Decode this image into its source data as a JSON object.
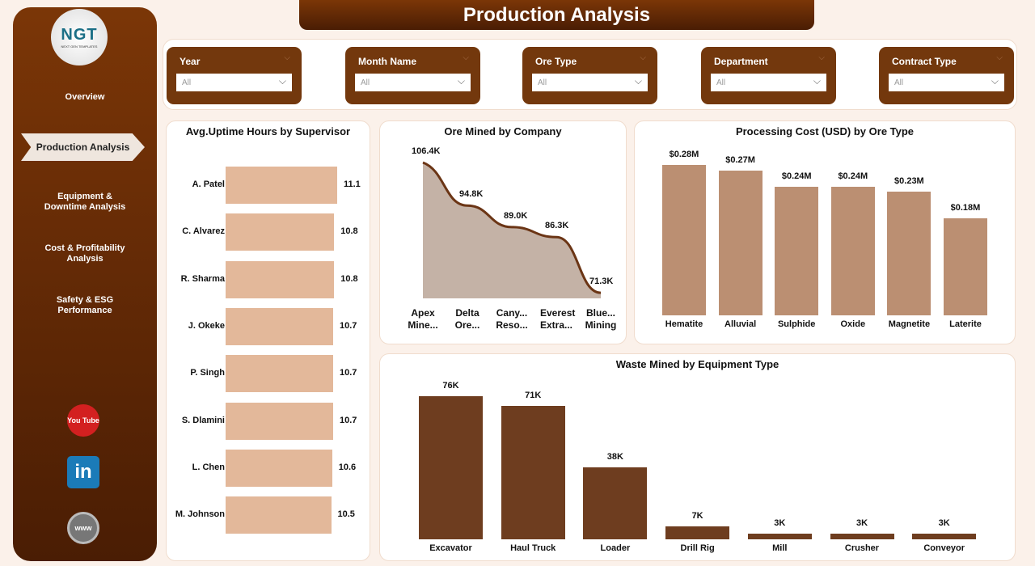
{
  "title": "Production Analysis",
  "logo": {
    "text": "NGT",
    "sub": "NEXT GEN TEMPLATES"
  },
  "nav": [
    {
      "label": "Overview"
    },
    {
      "label": "Production Analysis",
      "active": true
    },
    {
      "label": "Equipment & Downtime Analysis"
    },
    {
      "label": "Cost & Profitability Analysis"
    },
    {
      "label": "Safety & ESG Performance"
    }
  ],
  "social": [
    {
      "icon": "youtube-icon",
      "label": "You Tube"
    },
    {
      "icon": "linkedin-icon",
      "label": "in"
    },
    {
      "icon": "globe-icon",
      "label": "www"
    }
  ],
  "filters": [
    {
      "label": "Year",
      "value": "All"
    },
    {
      "label": "Month Name",
      "value": "All"
    },
    {
      "label": "Ore Type",
      "value": "All"
    },
    {
      "label": "Department",
      "value": "All"
    },
    {
      "label": "Contract Type",
      "value": "All"
    }
  ],
  "colors": {
    "brown": "#73380d",
    "tan": "#e3b89a",
    "processing": "#bb8f72",
    "area": "#c4b2a6",
    "waste": "#6e3d1f"
  },
  "chart_data": [
    {
      "type": "bar",
      "orientation": "horizontal",
      "title": "Avg.Uptime Hours by Supervisor",
      "categories": [
        "A. Patel",
        "C. Alvarez",
        "R. Sharma",
        "J. Okeke",
        "P. Singh",
        "S. Dlamini",
        "L. Chen",
        "M. Johnson"
      ],
      "values": [
        11.1,
        10.8,
        10.8,
        10.7,
        10.7,
        10.7,
        10.6,
        10.5
      ],
      "labels": [
        "11.1",
        "10.8",
        "10.8",
        "10.7",
        "10.7",
        "10.7",
        "10.6",
        "10.5"
      ]
    },
    {
      "type": "area",
      "title": "Ore Mined by Company",
      "categories": [
        "Apex Mine...",
        "Delta Ore...",
        "Cany... Reso...",
        "Everest Extra...",
        "Blue... Mining"
      ],
      "values": [
        106.4,
        94.8,
        89.0,
        86.3,
        71.3
      ],
      "labels": [
        "106.4K",
        "94.8K",
        "89.0K",
        "86.3K",
        "71.3K"
      ]
    },
    {
      "type": "bar",
      "title": "Processing Cost (USD) by Ore Type",
      "categories": [
        "Hematite",
        "Alluvial",
        "Sulphide",
        "Oxide",
        "Magnetite",
        "Laterite"
      ],
      "values": [
        0.28,
        0.27,
        0.24,
        0.24,
        0.23,
        0.18
      ],
      "labels": [
        "$0.28M",
        "$0.27M",
        "$0.24M",
        "$0.24M",
        "$0.23M",
        "$0.18M"
      ]
    },
    {
      "type": "bar",
      "title": "Waste Mined by Equipment Type",
      "categories": [
        "Excavator",
        "Haul Truck",
        "Loader",
        "Drill Rig",
        "Mill",
        "Crusher",
        "Conveyor"
      ],
      "values": [
        76,
        71,
        38,
        7,
        3,
        3,
        3
      ],
      "labels": [
        "76K",
        "71K",
        "38K",
        "7K",
        "3K",
        "3K",
        "3K"
      ]
    }
  ]
}
